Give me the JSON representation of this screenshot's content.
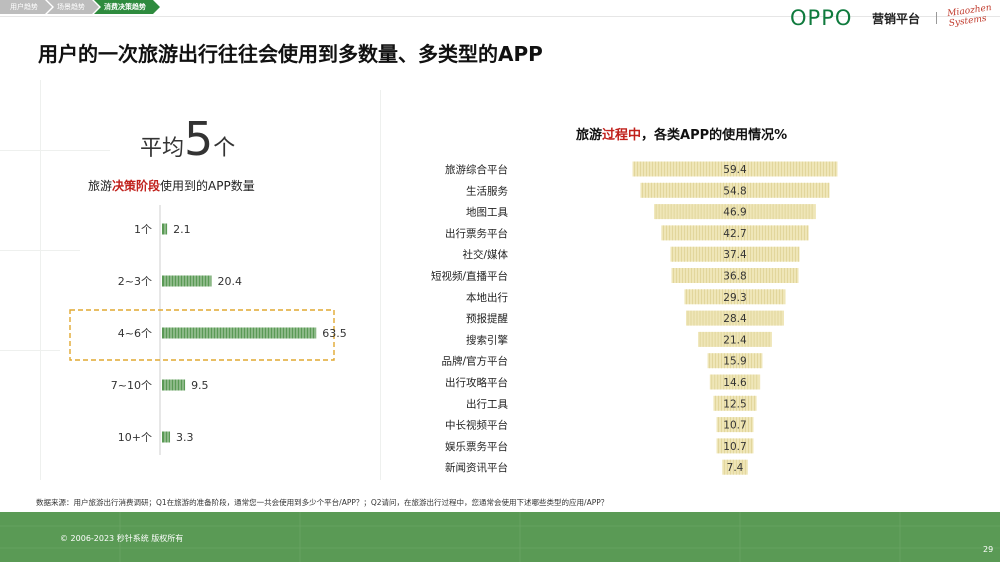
{
  "breadcrumb": [
    "用户趋势",
    "场景趋势",
    "消费决策趋势"
  ],
  "brand": {
    "oppo": "OPPO",
    "platform": "营销平台",
    "partner": [
      "Miaozhen",
      "Systems"
    ]
  },
  "title": "用户的一次旅游出行往往会使用到多数量、多类型的APP",
  "left": {
    "average_prefix": "平均",
    "average_value": "5",
    "average_unit": "个",
    "subtitle_pre": "旅游",
    "subtitle_highlight": "决策阶段",
    "subtitle_post": "使用到的APP数量"
  },
  "right": {
    "subtitle_pre": "旅游",
    "subtitle_highlight": "过程中",
    "subtitle_post": "，各类APP的使用情况%"
  },
  "chart_data": [
    {
      "type": "bar",
      "orientation": "horizontal",
      "categories": [
        "1个",
        "2~3个",
        "4~6个",
        "7~10个",
        "10+个"
      ],
      "values": [
        2.1,
        20.4,
        63.5,
        9.5,
        3.3
      ],
      "highlight": "4~6个",
      "color": "#5a9a55"
    },
    {
      "type": "bar",
      "orientation": "horizontal-centered",
      "categories": [
        "旅游综合平台",
        "生活服务",
        "地图工具",
        "出行票务平台",
        "社交/媒体",
        "短视频/直播平台",
        "本地出行",
        "预报提醒",
        "搜索引擎",
        "品牌/官方平台",
        "出行攻略平台",
        "出行工具",
        "中长视频平台",
        "娱乐票务平台",
        "新闻资讯平台"
      ],
      "values": [
        59.4,
        54.8,
        46.9,
        42.7,
        37.4,
        36.8,
        29.3,
        28.4,
        21.4,
        15.9,
        14.6,
        12.5,
        10.7,
        10.7,
        7.4
      ],
      "color": "#efe6b8"
    }
  ],
  "source": "数据来源：用户旅游出行消费调研；Q1在旅游的准备阶段，通常您一共会使用到多少个平台/APP？；Q2请问，在旅游出行过程中，您通常会使用下述哪些类型的应用/APP？",
  "copyright": "© 2006-2023 秒针系统 版权所有",
  "page_number": "29"
}
